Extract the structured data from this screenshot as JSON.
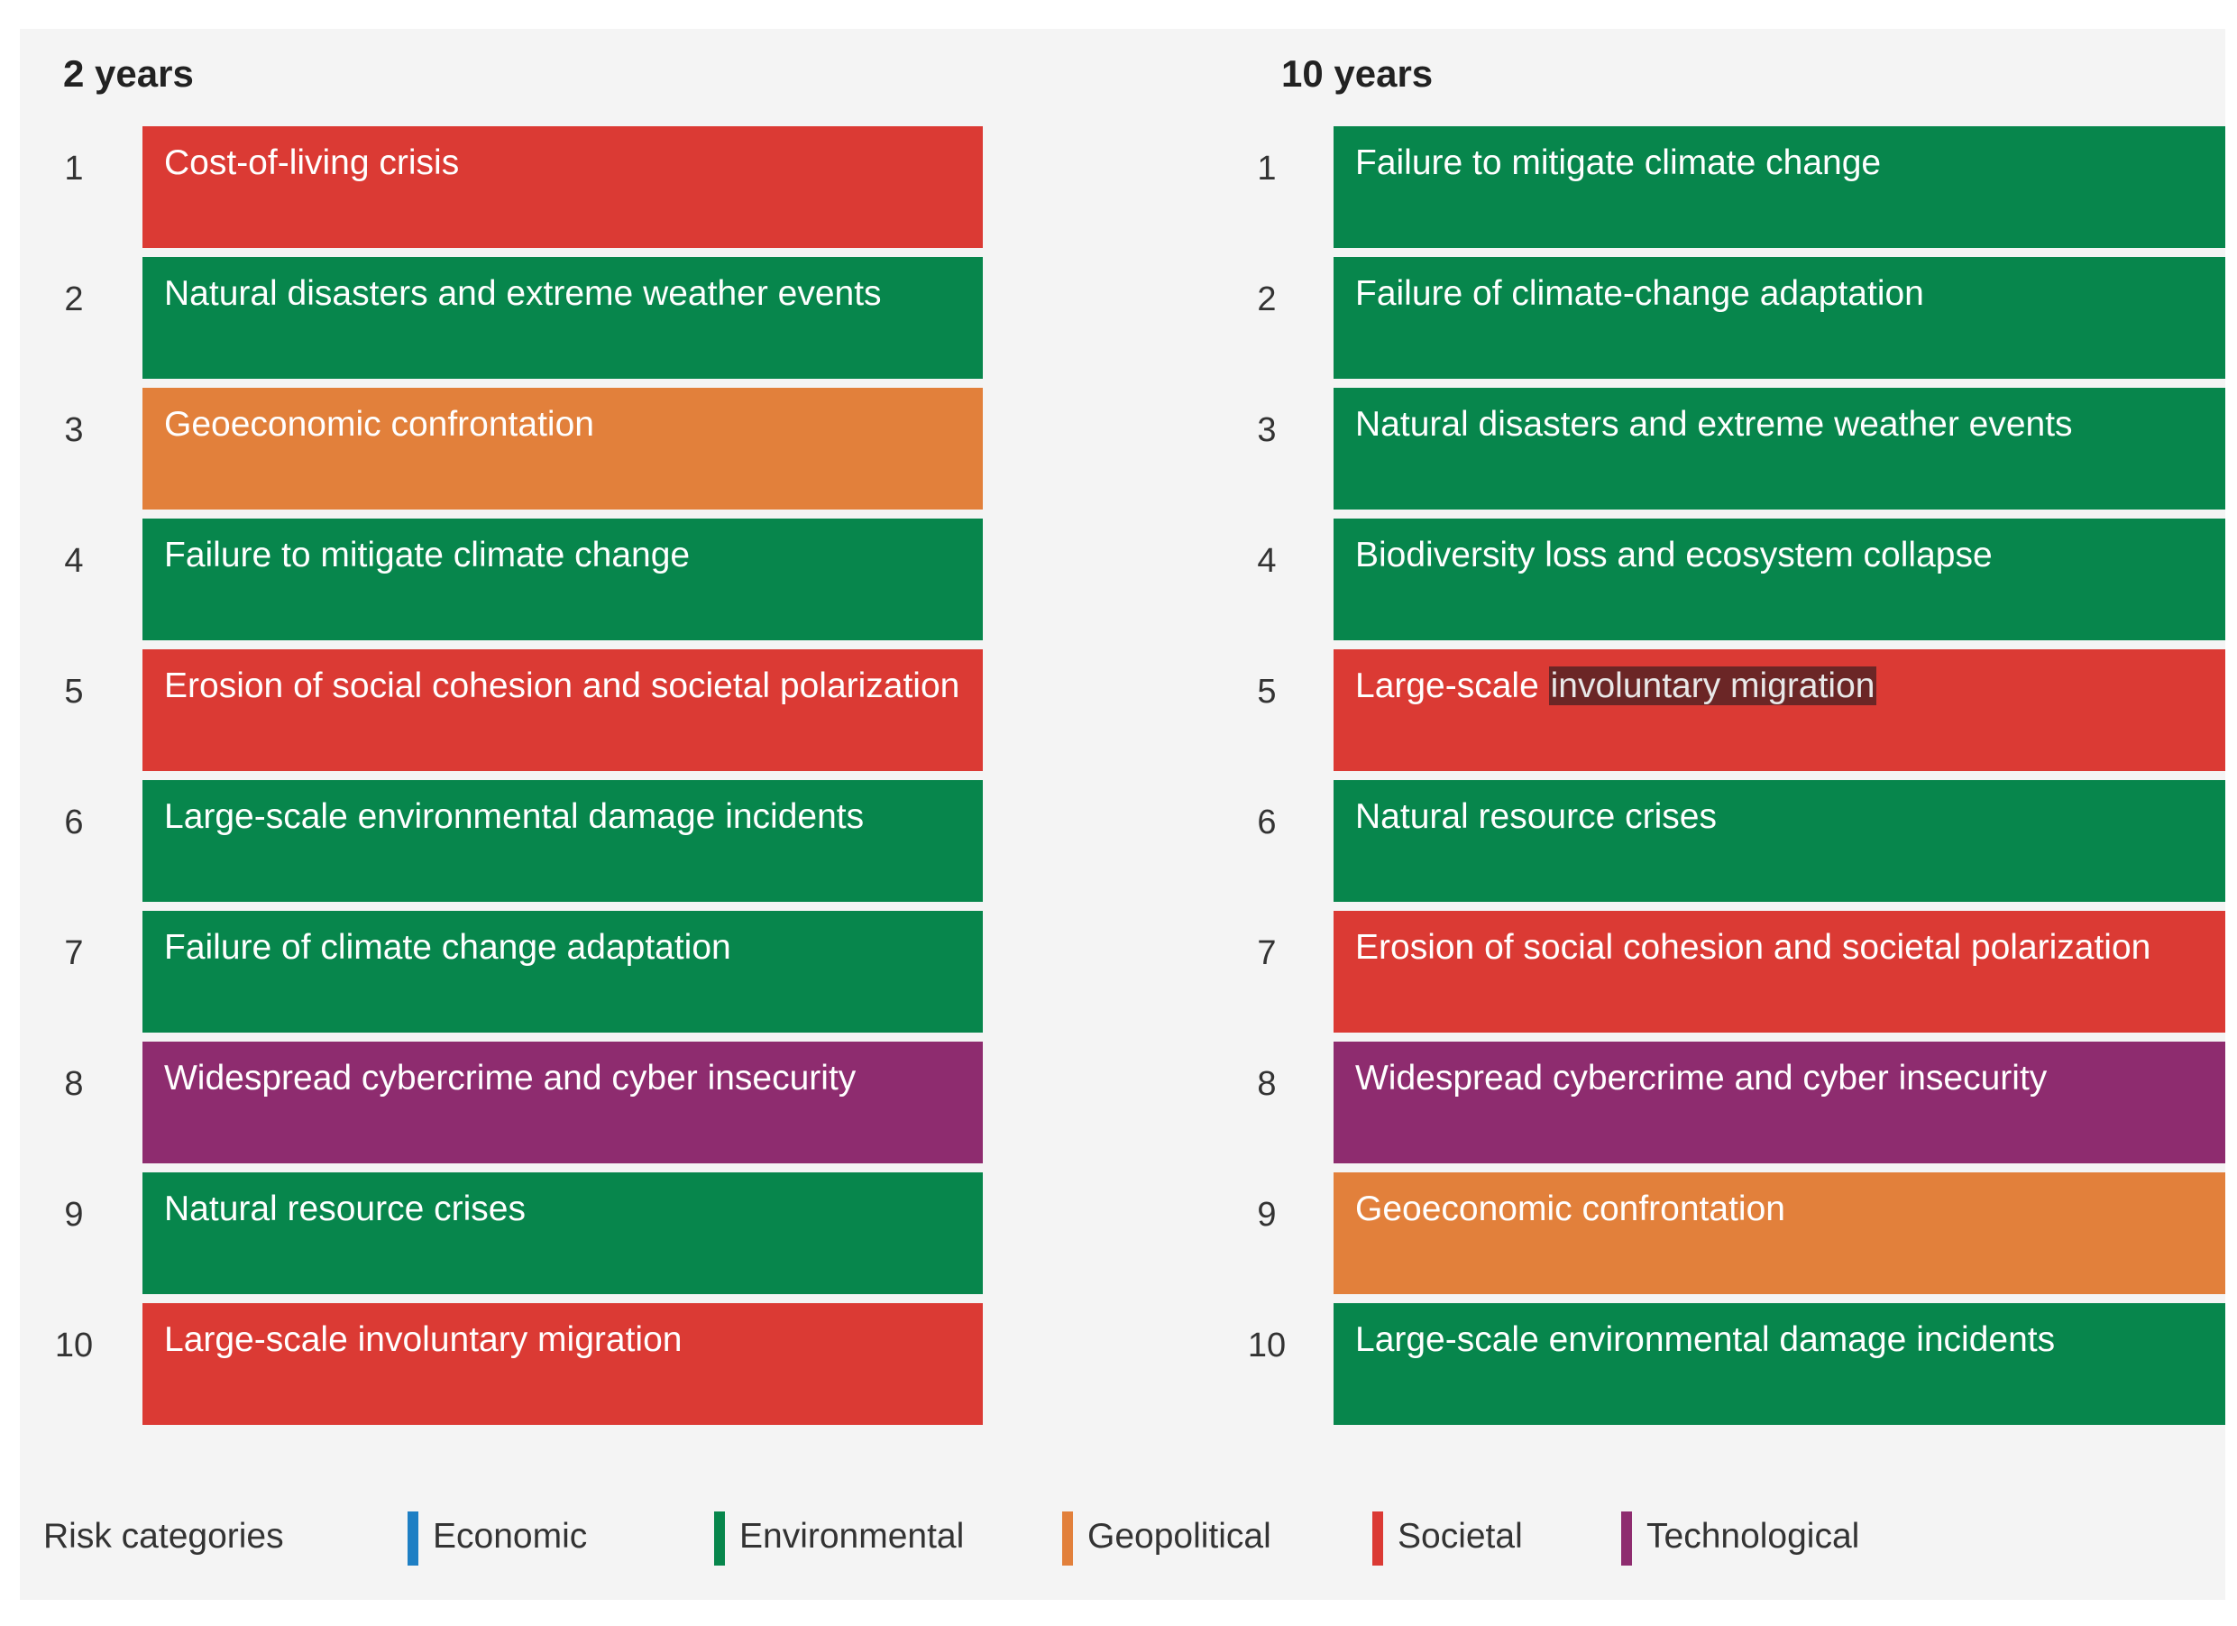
{
  "colors": {
    "Economic": "#1e7fc4",
    "Environmental": "#07864c",
    "Geopolitical": "#e2803b",
    "Societal": "#db3a34",
    "Technological": "#8e2c6f"
  },
  "columns": [
    {
      "title": "2 years",
      "items": [
        {
          "rank": "1",
          "label": "Cost-of-living crisis",
          "category": "Societal"
        },
        {
          "rank": "2",
          "label": "Natural disasters and extreme weather events",
          "category": "Environmental"
        },
        {
          "rank": "3",
          "label": "Geoeconomic confrontation",
          "category": "Geopolitical"
        },
        {
          "rank": "4",
          "label": "Failure to mitigate climate change",
          "category": "Environmental"
        },
        {
          "rank": "5",
          "label": "Erosion of social cohesion and societal polarization",
          "category": "Societal"
        },
        {
          "rank": "6",
          "label": "Large-scale environmental damage incidents",
          "category": "Environmental"
        },
        {
          "rank": "7",
          "label": "Failure of climate change adaptation",
          "category": "Environmental"
        },
        {
          "rank": "8",
          "label": "Widespread cybercrime and cyber insecurity",
          "category": "Technological"
        },
        {
          "rank": "9",
          "label": "Natural resource crises",
          "category": "Environmental"
        },
        {
          "rank": "10",
          "label": "Large-scale involuntary migration",
          "category": "Societal"
        }
      ]
    },
    {
      "title": "10 years",
      "items": [
        {
          "rank": "1",
          "label": "Failure to mitigate climate change",
          "category": "Environmental"
        },
        {
          "rank": "2",
          "label": "Failure of climate-change adaptation",
          "category": "Environmental"
        },
        {
          "rank": "3",
          "label": "Natural disasters and extreme weather events",
          "category": "Environmental"
        },
        {
          "rank": "4",
          "label": "Biodiversity loss and ecosystem collapse",
          "category": "Environmental"
        },
        {
          "rank": "5",
          "label": "Large-scale involuntary migration",
          "label_plain": "Large-scale ",
          "label_highlight": "involuntary migration",
          "category": "Societal"
        },
        {
          "rank": "6",
          "label": "Natural resource crises",
          "category": "Environmental"
        },
        {
          "rank": "7",
          "label": "Erosion of social cohesion and societal polarization",
          "category": "Societal"
        },
        {
          "rank": "8",
          "label": "Widespread cybercrime and cyber insecurity",
          "category": "Technological"
        },
        {
          "rank": "9",
          "label": "Geoeconomic confrontation",
          "category": "Geopolitical"
        },
        {
          "rank": "10",
          "label": "Large-scale environmental damage incidents",
          "category": "Environmental"
        }
      ]
    }
  ],
  "legend": {
    "title": "Risk categories",
    "items": [
      "Economic",
      "Environmental",
      "Geopolitical",
      "Societal",
      "Technological"
    ]
  }
}
